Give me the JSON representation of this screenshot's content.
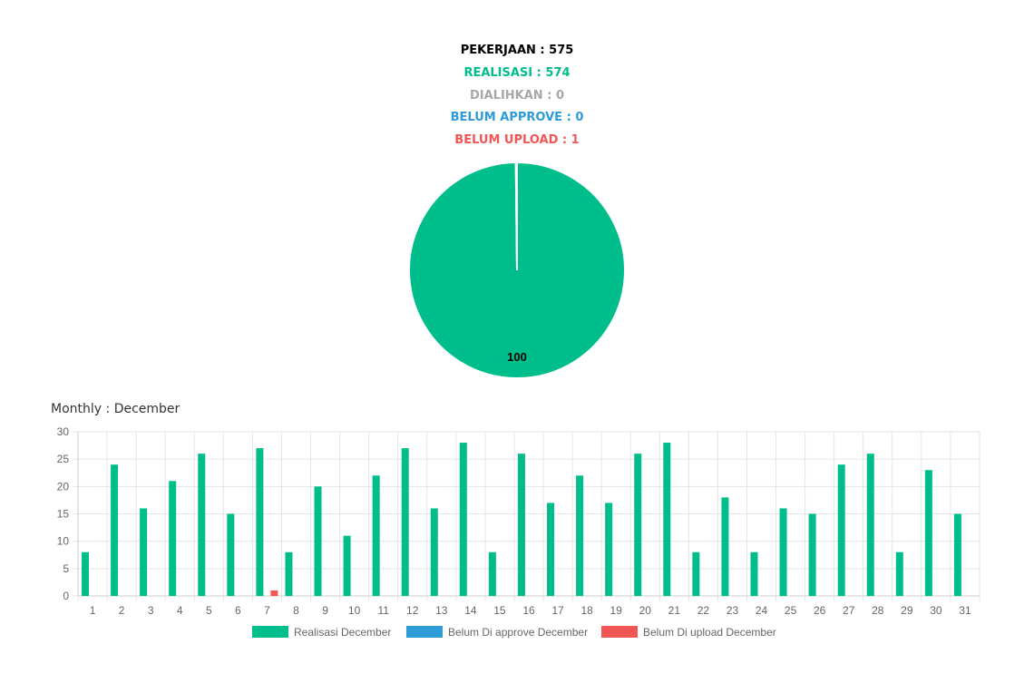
{
  "summary": {
    "pekerjaan": {
      "label": "PEKERJAAN",
      "separator": " : ",
      "value": "575",
      "color": "#000000"
    },
    "realisasi": {
      "label": "REALISASI",
      "separator": " : ",
      "value": "574",
      "color": "#00be8b"
    },
    "dialihkan": {
      "label": "DIALIHKAN",
      "separator": " : ",
      "value": "0",
      "color": "#a7a7a7"
    },
    "belum_approve": {
      "label": "BELUM APPROVE",
      "separator": " : ",
      "value": "0",
      "color": "#2e9ad6"
    },
    "belum_upload": {
      "label": "BELUM UPLOAD",
      "separator": " : ",
      "value": "1",
      "color": "#f15655"
    }
  },
  "monthly": {
    "label": "Monthly",
    "separator": " : ",
    "month": "December"
  },
  "chart_data": [
    {
      "type": "pie",
      "labels": [
        "Realisasi",
        "Belum upload"
      ],
      "values": [
        574,
        1
      ],
      "colors": [
        "#00be8b",
        "#f15655"
      ],
      "data_labels": [
        "100",
        ""
      ]
    },
    {
      "type": "bar",
      "categories": [
        "1",
        "2",
        "3",
        "4",
        "5",
        "6",
        "7",
        "8",
        "9",
        "10",
        "11",
        "12",
        "13",
        "14",
        "15",
        "16",
        "17",
        "18",
        "19",
        "20",
        "21",
        "22",
        "23",
        "24",
        "25",
        "26",
        "27",
        "28",
        "29",
        "30",
        "31"
      ],
      "series": [
        {
          "name": "Realisasi December",
          "color": "#00be8b",
          "values": [
            8,
            24,
            16,
            21,
            26,
            15,
            27,
            8,
            20,
            11,
            22,
            27,
            16,
            28,
            8,
            26,
            17,
            22,
            17,
            26,
            28,
            8,
            18,
            8,
            16,
            15,
            24,
            26,
            8,
            23,
            15
          ]
        },
        {
          "name": "Belum Di approve December",
          "color": "#2e9ad6",
          "values": [
            0,
            0,
            0,
            0,
            0,
            0,
            0,
            0,
            0,
            0,
            0,
            0,
            0,
            0,
            0,
            0,
            0,
            0,
            0,
            0,
            0,
            0,
            0,
            0,
            0,
            0,
            0,
            0,
            0,
            0,
            0
          ]
        },
        {
          "name": "Belum Di upload December",
          "color": "#f15655",
          "values": [
            0,
            0,
            0,
            0,
            0,
            0,
            1,
            0,
            0,
            0,
            0,
            0,
            0,
            0,
            0,
            0,
            0,
            0,
            0,
            0,
            0,
            0,
            0,
            0,
            0,
            0,
            0,
            0,
            0,
            0,
            0
          ]
        }
      ],
      "ylim": [
        0,
        30
      ],
      "yticks": [
        "0",
        "5",
        "10",
        "15",
        "20",
        "25",
        "30"
      ],
      "grid": true,
      "legend_position": "bottom"
    }
  ]
}
